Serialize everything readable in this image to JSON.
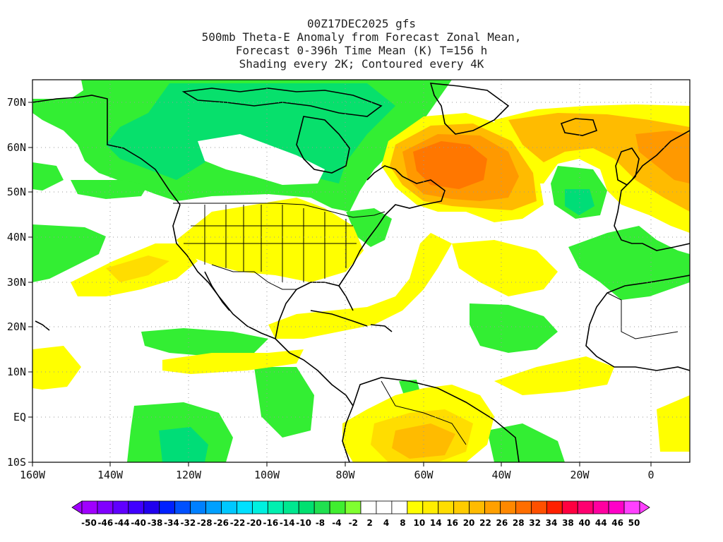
{
  "title": {
    "line1": "00Z17DEC2025 gfs",
    "line2": "500mb Theta-E Anomaly from Forecast Zonal Mean,",
    "line3": "Forecast 0-396h Time Mean (K) T=156 h",
    "line4": "Shading every 2K; Contoured every 4K"
  },
  "map": {
    "lon_labels": [
      "160W",
      "140W",
      "120W",
      "100W",
      "80W",
      "60W",
      "40W",
      "20W",
      "0"
    ],
    "lat_labels": [
      "70N",
      "60N",
      "50N",
      "40N",
      "30N",
      "20N",
      "10N",
      "EQ",
      "10S"
    ],
    "colors": {
      "green": "#33ee33",
      "green_dark": "#00dd77",
      "yellow": "#ffff00",
      "yellow_dark": "#ffdd00",
      "orange_light": "#ffbb00",
      "orange": "#ff9900",
      "orange_dark": "#ff7700",
      "outline": "#000000",
      "grid": "#999999"
    }
  },
  "colorbar": {
    "labels": [
      "-50",
      "-46",
      "-44",
      "-40",
      "-38",
      "-34",
      "-32",
      "-28",
      "-26",
      "-22",
      "-20",
      "-16",
      "-14",
      "-10",
      "-8",
      "-4",
      "-2",
      "2",
      "4",
      "8",
      "10",
      "14",
      "16",
      "20",
      "22",
      "26",
      "28",
      "32",
      "34",
      "38",
      "40",
      "44",
      "46",
      "50"
    ],
    "colors": [
      "#a000ff",
      "#8000ff",
      "#6000ff",
      "#4000ff",
      "#2000ee",
      "#0020ff",
      "#0050ff",
      "#0080ff",
      "#00a0ff",
      "#00c8ff",
      "#00e0ff",
      "#00f0e0",
      "#00f0b0",
      "#00e890",
      "#00e070",
      "#20e050",
      "#40ee30",
      "#80ff30",
      "#ffffff",
      "#ffffff",
      "#ffffff",
      "#ffff00",
      "#ffee00",
      "#ffdd00",
      "#ffcc00",
      "#ffbb00",
      "#ffa000",
      "#ff8800",
      "#ff6e00",
      "#ff5000",
      "#ff2000",
      "#ff0040",
      "#ff0070",
      "#ff00a0",
      "#ff00c8",
      "#ff40ff"
    ]
  }
}
